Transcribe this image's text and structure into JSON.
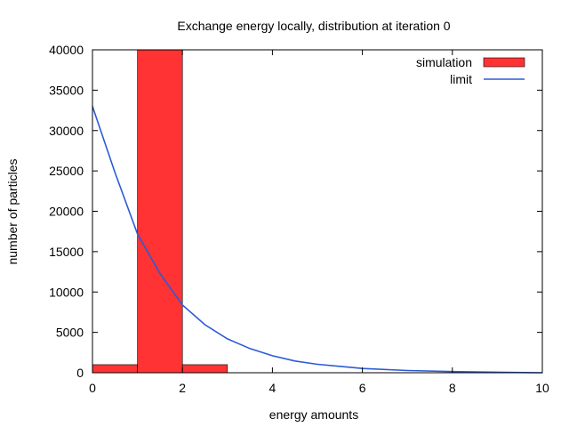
{
  "chart_data": {
    "type": "bar",
    "title": "Exchange energy locally, distribution at iteration 0",
    "xlabel": "energy amounts",
    "ylabel": "number of particles",
    "xlim": [
      0,
      10
    ],
    "ylim": [
      0,
      40000
    ],
    "x_ticks": [
      "0",
      "2",
      "4",
      "6",
      "8",
      "10"
    ],
    "y_ticks": [
      "0",
      "5000",
      "10000",
      "15000",
      "20000",
      "25000",
      "30000",
      "35000",
      "40000"
    ],
    "grid": false,
    "legend_position": "top-right",
    "series": [
      {
        "name": "simulation",
        "kind": "bar",
        "color": "#ff3333",
        "bins": [
          {
            "x0": 0,
            "x1": 1,
            "value": 1000
          },
          {
            "x0": 1,
            "x1": 2,
            "value": 40000
          },
          {
            "x0": 2,
            "x1": 3,
            "value": 1000
          }
        ]
      },
      {
        "name": "limit",
        "kind": "line",
        "color": "#2a5bd7",
        "points": [
          [
            0,
            33000
          ],
          [
            0.5,
            24800
          ],
          [
            1,
            17200
          ],
          [
            1.5,
            12300
          ],
          [
            2,
            8400
          ],
          [
            2.5,
            5950
          ],
          [
            3,
            4200
          ],
          [
            3.5,
            3000
          ],
          [
            4,
            2100
          ],
          [
            4.5,
            1450
          ],
          [
            5,
            1050
          ],
          [
            6,
            530
          ],
          [
            7,
            270
          ],
          [
            8,
            140
          ],
          [
            9,
            70
          ],
          [
            10,
            0
          ]
        ]
      }
    ]
  }
}
